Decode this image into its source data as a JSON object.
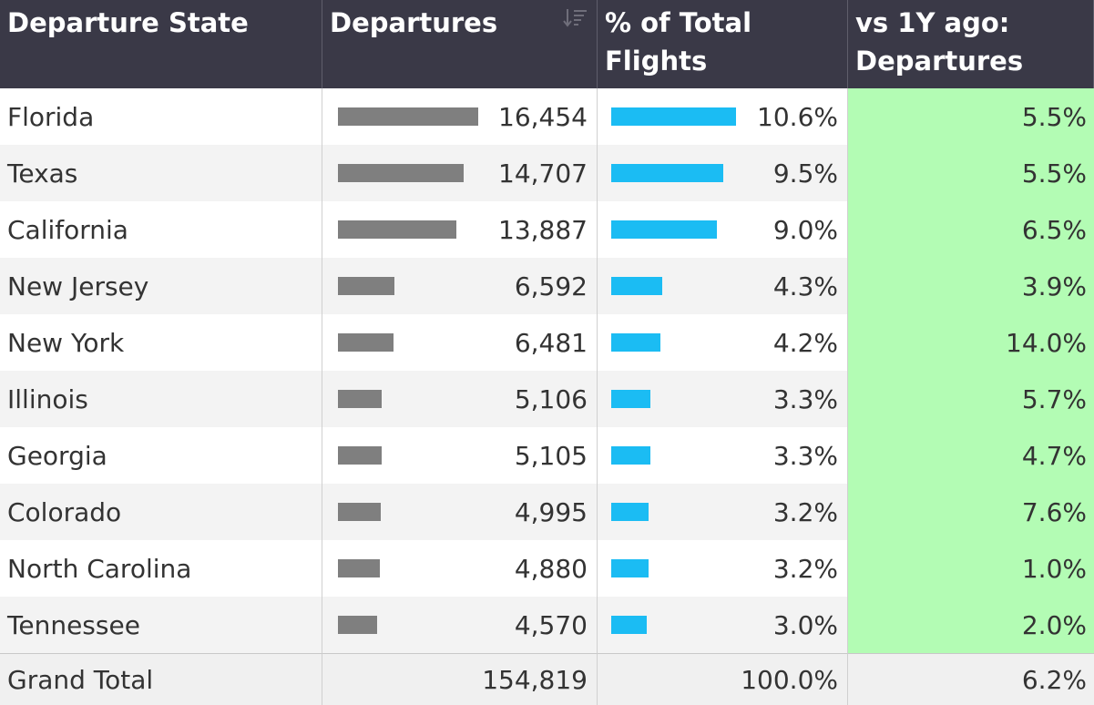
{
  "headers": {
    "state": "Departure State",
    "departures": "Departures",
    "pct_line1": "% of Total",
    "pct_line2": "Flights",
    "yoy_line1": "vs 1Y ago:",
    "yoy_line2": "Departures"
  },
  "icons": {
    "sort": "sort-descending-icon"
  },
  "colors": {
    "header_bg": "#3a3947",
    "departures_bar": "#7f7f7f",
    "pct_bar": "#1bbcf3",
    "yoy_bg": "#b3fcb4"
  },
  "rows": [
    {
      "state": "Florida",
      "departures": 16454,
      "departures_label": "16,454",
      "pct": 10.6,
      "pct_label": "10.6%",
      "yoy_label": "5.5%"
    },
    {
      "state": "Texas",
      "departures": 14707,
      "departures_label": "14,707",
      "pct": 9.5,
      "pct_label": "9.5%",
      "yoy_label": "5.5%"
    },
    {
      "state": "California",
      "departures": 13887,
      "departures_label": "13,887",
      "pct": 9.0,
      "pct_label": "9.0%",
      "yoy_label": "6.5%"
    },
    {
      "state": "New Jersey",
      "departures": 6592,
      "departures_label": "6,592",
      "pct": 4.3,
      "pct_label": "4.3%",
      "yoy_label": "3.9%"
    },
    {
      "state": "New York",
      "departures": 6481,
      "departures_label": "6,481",
      "pct": 4.2,
      "pct_label": "4.2%",
      "yoy_label": "14.0%"
    },
    {
      "state": "Illinois",
      "departures": 5106,
      "departures_label": "5,106",
      "pct": 3.3,
      "pct_label": "3.3%",
      "yoy_label": "5.7%"
    },
    {
      "state": "Georgia",
      "departures": 5105,
      "departures_label": "5,105",
      "pct": 3.3,
      "pct_label": "3.3%",
      "yoy_label": "4.7%"
    },
    {
      "state": "Colorado",
      "departures": 4995,
      "departures_label": "4,995",
      "pct": 3.2,
      "pct_label": "3.2%",
      "yoy_label": "7.6%"
    },
    {
      "state": "North Carolina",
      "departures": 4880,
      "departures_label": "4,880",
      "pct": 3.2,
      "pct_label": "3.2%",
      "yoy_label": "1.0%"
    },
    {
      "state": "Tennessee",
      "departures": 4570,
      "departures_label": "4,570",
      "pct": 3.0,
      "pct_label": "3.0%",
      "yoy_label": "2.0%"
    }
  ],
  "total": {
    "label": "Grand Total",
    "departures_label": "154,819",
    "pct_label": "100.0%",
    "yoy_label": "6.2%"
  }
}
